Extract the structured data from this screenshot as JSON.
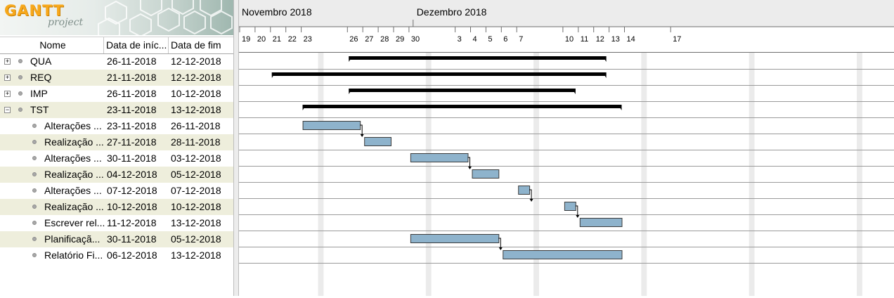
{
  "logo": {
    "brand": "GANTT",
    "sub": "project"
  },
  "columns": {
    "name": "Nome",
    "start": "Data de iníc...",
    "end": "Data de fim"
  },
  "timeline": {
    "months": [
      {
        "label": "Novembro 2018"
      },
      {
        "label": "Dezembro 2018"
      }
    ],
    "start_date": "2018-11-19",
    "days": [
      "19",
      "20",
      "21",
      "22",
      "23",
      "26",
      "27",
      "28",
      "29",
      "30",
      "3",
      "4",
      "5",
      "6",
      "7",
      "10",
      "11",
      "12",
      "13",
      "14",
      "17"
    ]
  },
  "tasks": [
    {
      "name": "QUA",
      "start": "26-11-2018",
      "end": "12-12-2018",
      "level": 0,
      "summary": true,
      "collapsed": true
    },
    {
      "name": "REQ",
      "start": "21-11-2018",
      "end": "12-12-2018",
      "level": 0,
      "summary": true,
      "collapsed": true
    },
    {
      "name": "IMP",
      "start": "26-11-2018",
      "end": "10-12-2018",
      "level": 0,
      "summary": true,
      "collapsed": true
    },
    {
      "name": "TST",
      "start": "23-11-2018",
      "end": "13-12-2018",
      "level": 0,
      "summary": true,
      "collapsed": false
    },
    {
      "name": "Alterações ...",
      "start": "23-11-2018",
      "end": "26-11-2018",
      "level": 1
    },
    {
      "name": "Realização ...",
      "start": "27-11-2018",
      "end": "28-11-2018",
      "level": 1
    },
    {
      "name": "Alterações ...",
      "start": "30-11-2018",
      "end": "03-12-2018",
      "level": 1
    },
    {
      "name": "Realização ...",
      "start": "04-12-2018",
      "end": "05-12-2018",
      "level": 1
    },
    {
      "name": "Alterações ...",
      "start": "07-12-2018",
      "end": "07-12-2018",
      "level": 1
    },
    {
      "name": "Realização ...",
      "start": "10-12-2018",
      "end": "10-12-2018",
      "level": 1
    },
    {
      "name": "Escrever rel...",
      "start": "11-12-2018",
      "end": "13-12-2018",
      "level": 1
    },
    {
      "name": "Planificaçã...",
      "start": "30-11-2018",
      "end": "05-12-2018",
      "level": 1
    },
    {
      "name": "Relatório Fi...",
      "start": "06-12-2018",
      "end": "13-12-2018",
      "level": 1
    }
  ],
  "dependencies": [
    [
      4,
      5
    ],
    [
      6,
      7
    ],
    [
      8,
      9
    ],
    [
      9,
      10
    ],
    [
      11,
      12
    ]
  ],
  "colors": {
    "task_bar": "#8eb3cc",
    "summary_bar": "#000000",
    "weekend": "#ebebeb",
    "alt_row": "#eeeedc"
  }
}
